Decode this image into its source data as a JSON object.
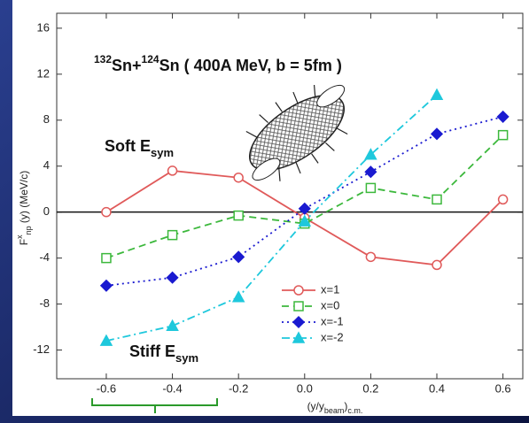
{
  "chart_data": {
    "type": "line",
    "title_parts": [
      "132",
      "Sn+",
      "124",
      "Sn ( 400A MeV, b = 5fm )"
    ],
    "ylabel_parts": [
      "F",
      "x",
      "np",
      " (y) (MeV/c)"
    ],
    "xlabel_parts": [
      "(y/y",
      "beam",
      ")",
      "c.m."
    ],
    "annotations": [
      {
        "text": "Soft E",
        "sub": "sym"
      },
      {
        "text": "Stiff E",
        "sub": "sym"
      }
    ],
    "x": [
      -0.6,
      -0.4,
      -0.2,
      0,
      0.2,
      0.4,
      0.6
    ],
    "series": [
      {
        "name": "x=1",
        "color": "#e05a5a",
        "dash": "solid",
        "marker": "circle",
        "values": [
          0,
          3.6,
          3.0,
          -0.5,
          -3.9,
          -4.6,
          1.1
        ]
      },
      {
        "name": "x=0",
        "color": "#3cb83c",
        "dash": "dashed",
        "marker": "square",
        "values": [
          -4.0,
          -2.0,
          -0.3,
          -1.0,
          2.1,
          1.1,
          6.7
        ]
      },
      {
        "name": "x=-1",
        "color": "#1a1ad0",
        "dash": "dotted",
        "marker": "diamond",
        "values": [
          -6.4,
          -5.7,
          -3.9,
          0.3,
          3.5,
          6.8,
          8.3
        ]
      },
      {
        "name": "x=-2",
        "color": "#1ec8dc",
        "dash": "dashdot",
        "marker": "triangle",
        "values": [
          -11.2,
          -9.9,
          -7.4,
          -0.8,
          5.0,
          10.2,
          null
        ]
      }
    ],
    "xlim": [
      -0.75,
      0.66
    ],
    "ylim": [
      -14.5,
      17.3
    ],
    "xticks": [
      -0.6,
      -0.4,
      -0.2,
      {
        "value": 0,
        "label": "0.0"
      },
      0.2,
      0.4,
      0.6
    ],
    "yticks": [
      16,
      12,
      8,
      4,
      0,
      -4,
      -8,
      -12
    ],
    "zero_line": true
  }
}
